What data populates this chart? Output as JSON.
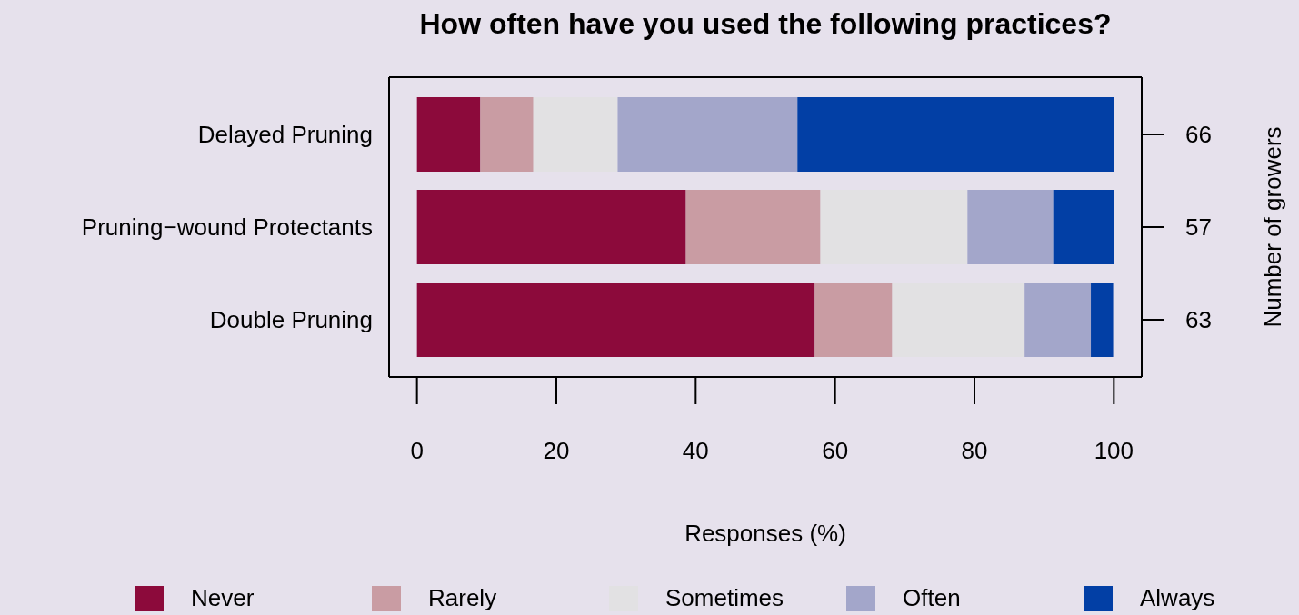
{
  "chart_data": {
    "type": "bar",
    "orientation": "horizontal",
    "stacked": true,
    "title": "How often have you used the following practices?",
    "xlabel": "Responses (%)",
    "y2label": "Number of growers",
    "categories": [
      "Delayed Pruning",
      "Pruning−wound Protectants",
      "Double Pruning"
    ],
    "y2_categories": [
      "66",
      "57",
      "63"
    ],
    "series": [
      {
        "name": "Never",
        "color": "#8c0a3b",
        "values": [
          9.1,
          38.6,
          57.1
        ]
      },
      {
        "name": "Rarely",
        "color": "#c99ca3",
        "values": [
          7.6,
          19.3,
          11.1
        ]
      },
      {
        "name": "Sometimes",
        "color": "#e2e1e3",
        "values": [
          12.1,
          21.1,
          19.0
        ]
      },
      {
        "name": "Often",
        "color": "#a3a6ca",
        "values": [
          25.8,
          12.3,
          9.5
        ]
      },
      {
        "name": "Always",
        "color": "#023fa5",
        "values": [
          45.4,
          8.7,
          3.2
        ]
      }
    ],
    "xlim": [
      -4,
      104
    ],
    "xticks": [
      0,
      20,
      40,
      60,
      80,
      100
    ],
    "grid": false,
    "legend": "bottom"
  }
}
